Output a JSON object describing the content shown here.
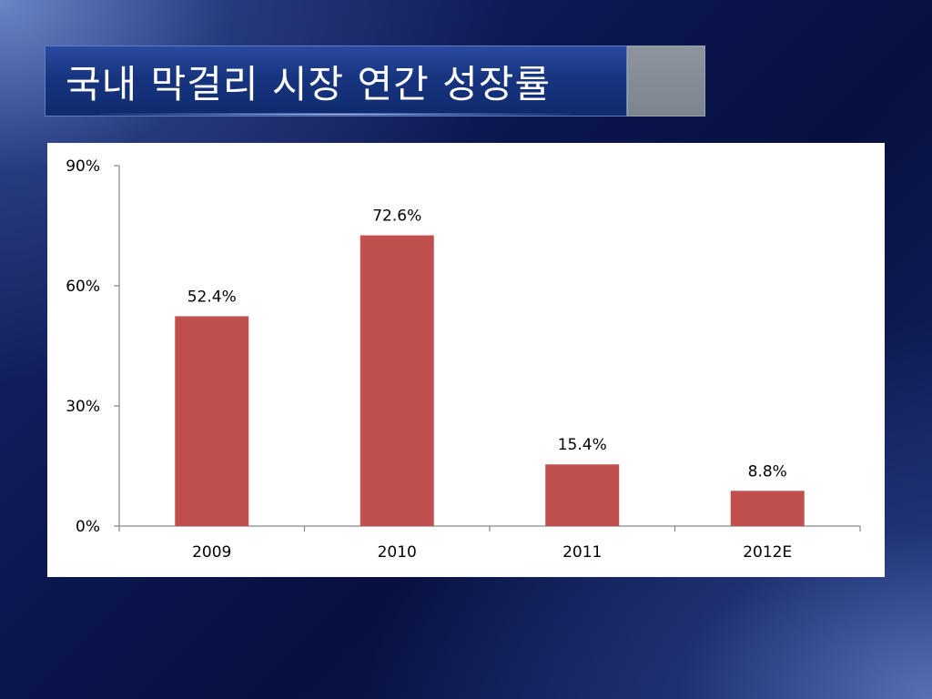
{
  "slide": {
    "title": "국내 막걸리 시장 연간 성장률"
  },
  "colors": {
    "bar": "#c0504d",
    "axis": "#868686",
    "panel": "#ffffff"
  },
  "chart_data": {
    "type": "bar",
    "title": "",
    "xlabel": "",
    "ylabel": "",
    "categories": [
      "2009",
      "2010",
      "2011",
      "2012E"
    ],
    "values": [
      52.4,
      72.6,
      15.4,
      8.8
    ],
    "data_labels": [
      "52.4%",
      "72.6%",
      "15.4%",
      "8.8%"
    ],
    "ylim": [
      0,
      90
    ],
    "yticks": [
      0,
      30,
      60,
      90
    ],
    "ytick_labels": [
      "0%",
      "30%",
      "60%",
      "90%"
    ],
    "grid": false,
    "legend": "none"
  }
}
